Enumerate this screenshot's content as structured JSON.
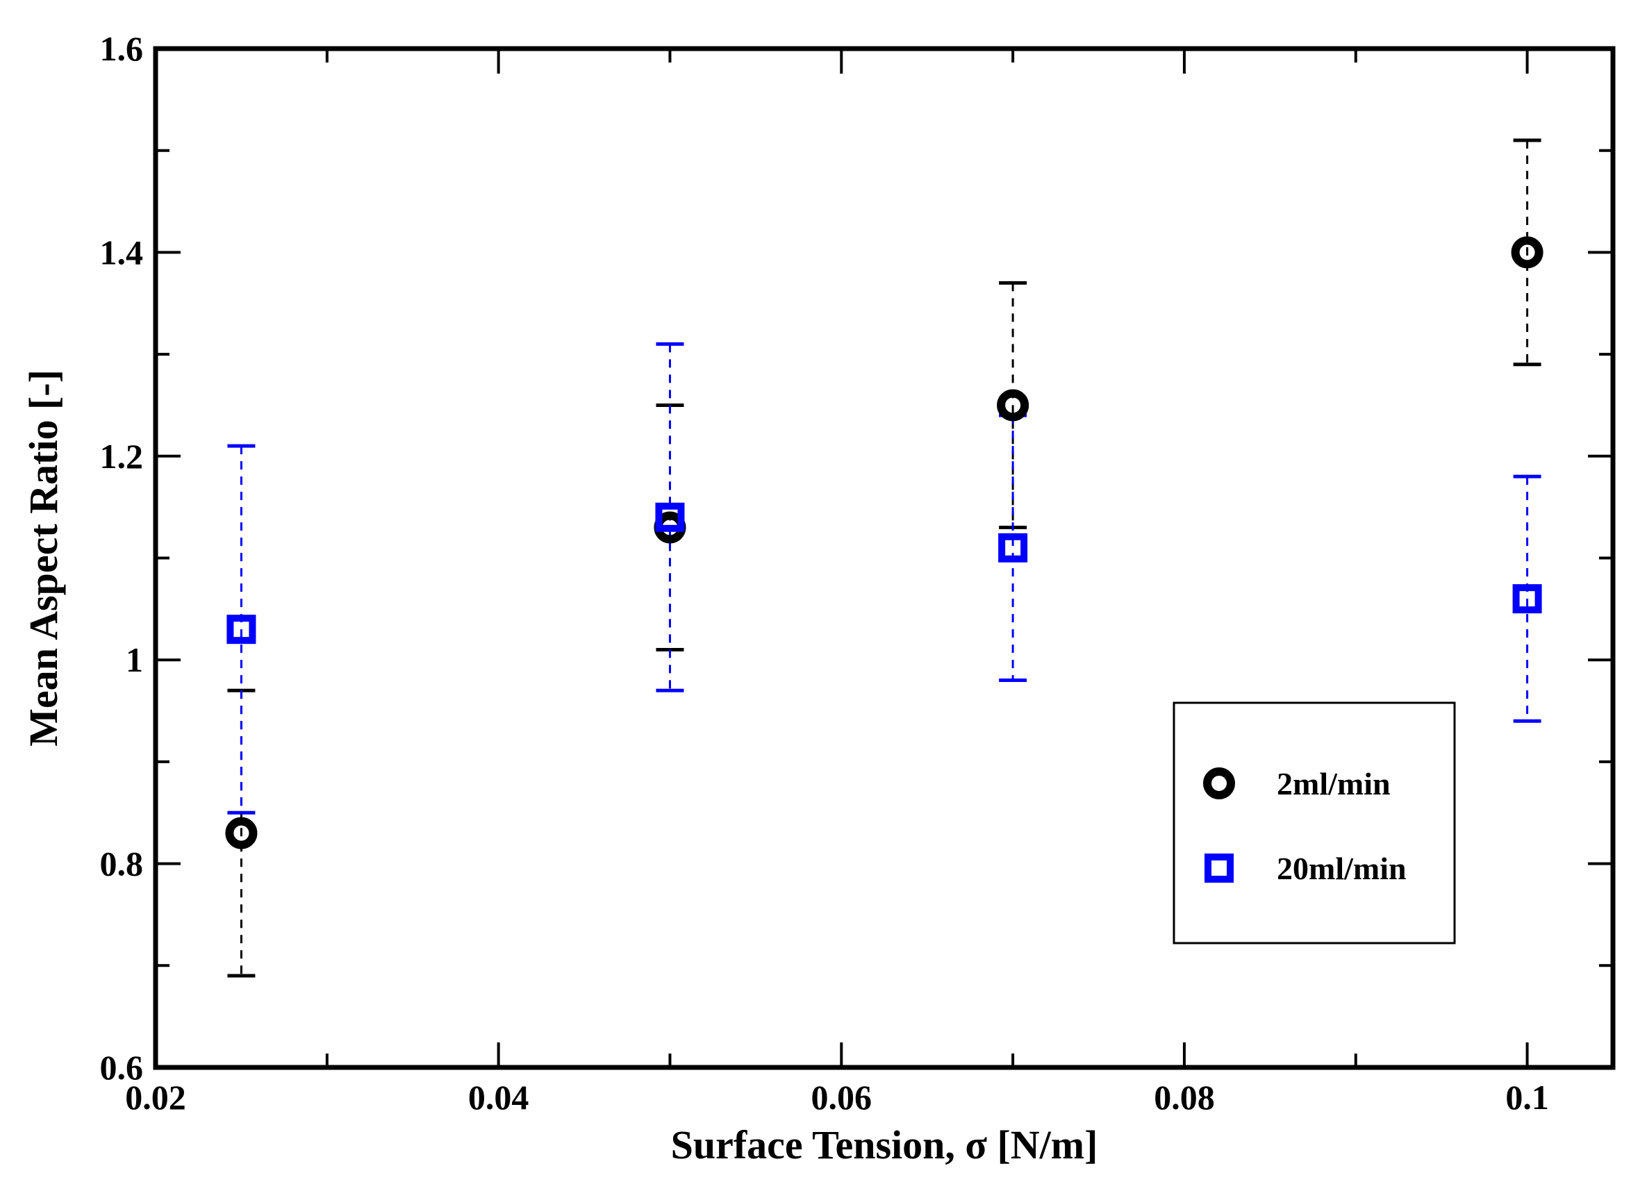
{
  "chart_data": {
    "type": "scatter",
    "title": "",
    "xlabel": "Surface Tension, σ [N/m]",
    "ylabel": "Mean Aspect Ratio [-]",
    "xlim": [
      0.02,
      0.105
    ],
    "ylim": [
      0.6,
      1.6
    ],
    "xticks": [
      0.02,
      0.04,
      0.06,
      0.08,
      0.1
    ],
    "xtick_labels": [
      "0.02",
      "0.04",
      "0.06",
      "0.08",
      "0.1"
    ],
    "yticks": [
      0.6,
      0.8,
      1.0,
      1.2,
      1.4,
      1.6
    ],
    "ytick_labels": [
      "0.6",
      "0.8",
      "1",
      "1.2",
      "1.4",
      "1.6"
    ],
    "grid": false,
    "legend_position": "bottom-right",
    "series": [
      {
        "name": "2ml/min",
        "marker": "circle",
        "color": "#000000",
        "x": [
          0.025,
          0.05,
          0.07,
          0.1
        ],
        "y": [
          0.83,
          1.13,
          1.25,
          1.4
        ],
        "yerr_low": [
          0.69,
          1.01,
          1.13,
          1.29
        ],
        "yerr_high": [
          0.97,
          1.25,
          1.37,
          1.51
        ]
      },
      {
        "name": "20ml/min",
        "marker": "square",
        "color": "#0000ff",
        "x": [
          0.025,
          0.05,
          0.07,
          0.1
        ],
        "y": [
          1.03,
          1.14,
          1.11,
          1.06
        ],
        "yerr_low": [
          0.85,
          0.97,
          0.98,
          0.94
        ],
        "yerr_high": [
          1.21,
          1.31,
          1.24,
          1.18
        ]
      }
    ]
  }
}
